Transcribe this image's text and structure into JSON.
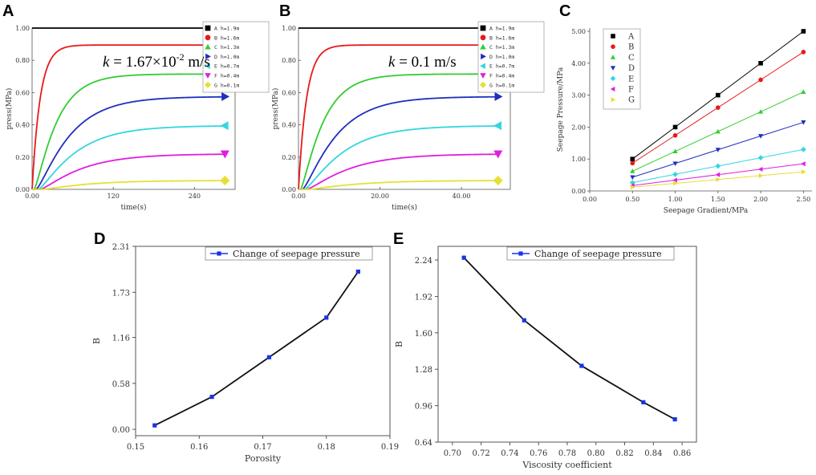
{
  "chart_data": [
    {
      "panel": "A",
      "type": "line",
      "xlabel": "time(s)",
      "ylabel": "press(MPa)",
      "xlim": [
        0,
        300
      ],
      "ylim": [
        0,
        1.0
      ],
      "xticks": [
        0,
        120,
        240
      ],
      "xtick_labels": [
        "0.00",
        "120",
        "240"
      ],
      "yticks": [
        0,
        0.2,
        0.4,
        0.6,
        0.8,
        1.0
      ],
      "ytick_labels": [
        "0.00",
        "0.20",
        "0.40",
        "0.60",
        "0.80",
        "1.00"
      ],
      "annotation": {
        "prefix": "k",
        "text": " = 1.67×10",
        "sup": "-2",
        "suffix": " m/s"
      },
      "end_x": 285,
      "series": [
        {
          "name": "A h=1.9m",
          "final": 1.0,
          "tau": 0,
          "delay": 0,
          "color": "#000000",
          "marker": "square"
        },
        {
          "name": "B h=1.6m",
          "final": 0.895,
          "tau": 12,
          "delay": 0,
          "color": "#e8191a",
          "marker": "circle"
        },
        {
          "name": "C h=1.3m",
          "final": 0.715,
          "tau": 30,
          "delay": 3,
          "color": "#33cc33",
          "marker": "triangle-up"
        },
        {
          "name": "D h=1.0m",
          "final": 0.575,
          "tau": 45,
          "delay": 6,
          "color": "#1f2fbf",
          "marker": "triangle-right"
        },
        {
          "name": "E h=0.7m",
          "final": 0.395,
          "tau": 50,
          "delay": 9,
          "color": "#33d6e0",
          "marker": "triangle-left"
        },
        {
          "name": "F h=0.4m",
          "final": 0.22,
          "tau": 55,
          "delay": 12,
          "color": "#e01ee0",
          "marker": "triangle-down"
        },
        {
          "name": "G h=0.1m",
          "final": 0.055,
          "tau": 60,
          "delay": 15,
          "color": "#e6e033",
          "marker": "diamond"
        }
      ]
    },
    {
      "panel": "B",
      "type": "line",
      "xlabel": "time(s)",
      "ylabel": "press(MPa)",
      "xlim": [
        0,
        52
      ],
      "ylim": [
        0,
        1.0
      ],
      "xticks": [
        0,
        20,
        40
      ],
      "xtick_labels": [
        "0.00",
        "20.00",
        "40.00"
      ],
      "yticks": [
        0,
        0.2,
        0.4,
        0.6,
        0.8,
        1.0
      ],
      "ytick_labels": [
        "0.00",
        "0.20",
        "0.40",
        "0.60",
        "0.80",
        "1.00"
      ],
      "annotation": {
        "prefix": "k",
        "text": " = 0.1 m/s",
        "sup": "",
        "suffix": ""
      },
      "end_x": 49,
      "series": [
        {
          "name": "A h=1.9m",
          "final": 1.0,
          "tau": 0,
          "delay": 0,
          "color": "#000000",
          "marker": "square"
        },
        {
          "name": "B h=1.6m",
          "final": 0.895,
          "tau": 2,
          "delay": 0,
          "color": "#e8191a",
          "marker": "circle"
        },
        {
          "name": "C h=1.3m",
          "final": 0.715,
          "tau": 5,
          "delay": 0.5,
          "color": "#33cc33",
          "marker": "triangle-up"
        },
        {
          "name": "D h=1.0m",
          "final": 0.575,
          "tau": 7.5,
          "delay": 1.0,
          "color": "#1f2fbf",
          "marker": "triangle-right"
        },
        {
          "name": "E h=0.7m",
          "final": 0.395,
          "tau": 8.5,
          "delay": 1.5,
          "color": "#33d6e0",
          "marker": "triangle-left"
        },
        {
          "name": "F h=0.4m",
          "final": 0.22,
          "tau": 9.5,
          "delay": 2.0,
          "color": "#e01ee0",
          "marker": "triangle-down"
        },
        {
          "name": "G h=0.1m",
          "final": 0.055,
          "tau": 10.5,
          "delay": 2.5,
          "color": "#e6e033",
          "marker": "diamond"
        }
      ]
    },
    {
      "panel": "C",
      "type": "line",
      "xlabel": "Seepage Gradient/MPa",
      "ylabel": "Seepage Pressure/MPa",
      "xlim": [
        0,
        2.6
      ],
      "ylim": [
        0,
        5.1
      ],
      "xticks": [
        0,
        0.5,
        1.0,
        1.5,
        2.0,
        2.5
      ],
      "xtick_labels": [
        "0.00",
        "0.50",
        "1.00",
        "1.50",
        "2.00",
        "2.50"
      ],
      "yticks": [
        0,
        1,
        2,
        3,
        4,
        5
      ],
      "ytick_labels": [
        "0.00",
        "1.00",
        "2.00",
        "3.00",
        "4.00",
        "5.00"
      ],
      "x": [
        0.5,
        1.0,
        1.5,
        2.0,
        2.5
      ],
      "series": [
        {
          "name": "A",
          "values": [
            1.0,
            2.0,
            3.0,
            4.0,
            5.0
          ],
          "color": "#000000",
          "marker": "square"
        },
        {
          "name": "B",
          "values": [
            0.87,
            1.74,
            2.61,
            3.48,
            4.35
          ],
          "color": "#e8191a",
          "marker": "circle"
        },
        {
          "name": "C",
          "values": [
            0.62,
            1.24,
            1.86,
            2.48,
            3.1
          ],
          "color": "#33cc33",
          "marker": "triangle-up"
        },
        {
          "name": "D",
          "values": [
            0.43,
            0.86,
            1.29,
            1.72,
            2.15
          ],
          "color": "#1f2fbf",
          "marker": "triangle-down"
        },
        {
          "name": "E",
          "values": [
            0.26,
            0.52,
            0.78,
            1.04,
            1.3
          ],
          "color": "#33d6e0",
          "marker": "diamond"
        },
        {
          "name": "F",
          "values": [
            0.17,
            0.34,
            0.51,
            0.68,
            0.85
          ],
          "color": "#e01ee0",
          "marker": "triangle-left"
        },
        {
          "name": "G",
          "values": [
            0.12,
            0.24,
            0.36,
            0.48,
            0.6
          ],
          "color": "#e6e033",
          "marker": "triangle-right"
        }
      ]
    },
    {
      "panel": "D",
      "type": "line",
      "xlabel": "Porosity",
      "ylabel": "B",
      "legend": "Change of seepage pressure",
      "xlim": [
        0.15,
        0.19
      ],
      "ylim": [
        -0.08,
        2.31
      ],
      "xticks": [
        0.15,
        0.16,
        0.17,
        0.18,
        0.19
      ],
      "xtick_labels": [
        "0.15",
        "0.16",
        "0.17",
        "0.18",
        "0.19"
      ],
      "yticks": [
        0.0,
        0.58,
        1.16,
        1.73,
        2.31
      ],
      "ytick_labels": [
        "0.00",
        "0.58",
        "1.16",
        "1.73",
        "2.31"
      ],
      "x": [
        0.153,
        0.162,
        0.171,
        0.18,
        0.185
      ],
      "values": [
        0.05,
        0.41,
        0.91,
        1.41,
        1.99
      ],
      "color": "#1a33e6"
    },
    {
      "panel": "E",
      "type": "line",
      "xlabel": "Viscosity coefficient",
      "ylabel": "B",
      "legend": "Change of seepage pressure",
      "xlim": [
        0.69,
        0.87
      ],
      "ylim": [
        0.64,
        2.36
      ],
      "xticks": [
        0.7,
        0.72,
        0.74,
        0.76,
        0.78,
        0.8,
        0.82,
        0.84,
        0.86
      ],
      "xtick_labels": [
        "0.70",
        "0.72",
        "0.74",
        "0.76",
        "0.78",
        "0.80",
        "0.82",
        "0.84",
        "0.86"
      ],
      "yticks": [
        0.64,
        0.96,
        1.28,
        1.6,
        1.92,
        2.24
      ],
      "ytick_labels": [
        "0.64",
        "0.96",
        "1.28",
        "1.60",
        "1.92",
        "2.24"
      ],
      "x": [
        0.708,
        0.75,
        0.79,
        0.833,
        0.855
      ],
      "values": [
        2.26,
        1.71,
        1.31,
        0.99,
        0.84
      ],
      "color": "#1a33e6"
    }
  ]
}
